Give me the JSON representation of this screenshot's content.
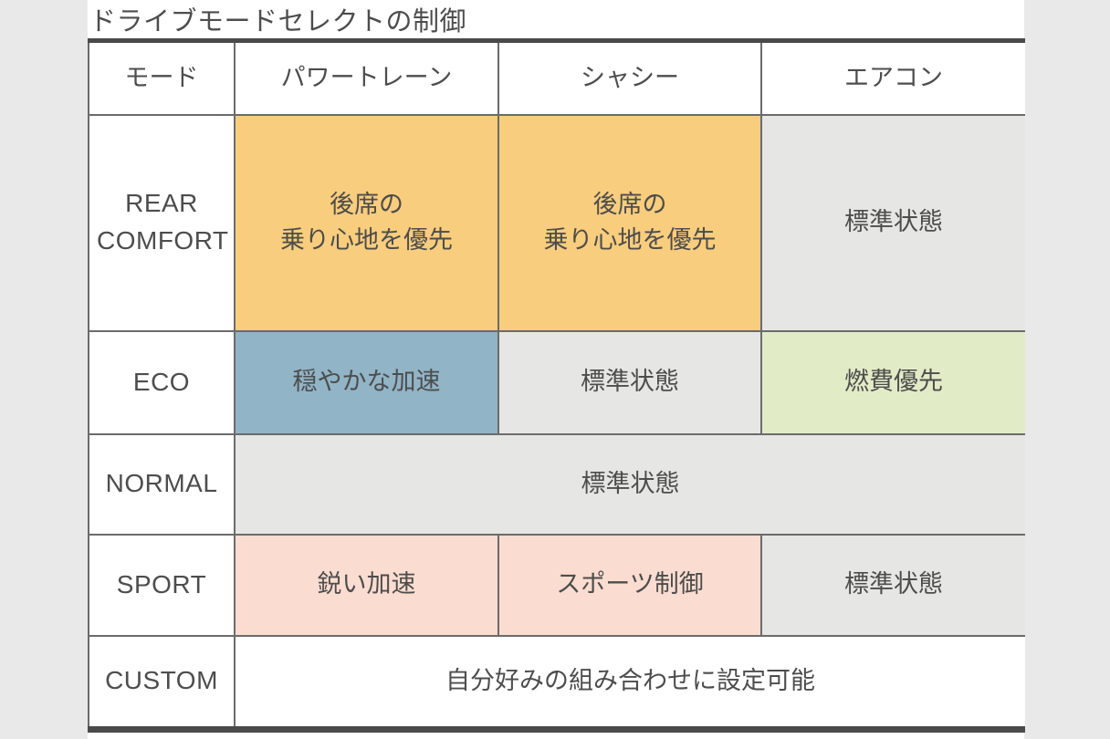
{
  "page": {
    "title": "ドライブモードセレクトの制御",
    "background": "#e9e9e9",
    "panel_background": "#ffffff"
  },
  "colors": {
    "standard_gray": "#e6e6e4",
    "comfort_orange": "#f8cd7d",
    "eco_blue": "#91b4c7",
    "fuel_green": "#e1ecc7",
    "sport_pink": "#fadcd0",
    "plain_white": "#ffffff",
    "text": "#4d4d4d",
    "border_thick": "#4a4a4a",
    "border_thin": "#6b6b6b"
  },
  "table": {
    "headers": [
      "モード",
      "パワートレーン",
      "シャシー",
      "エアコン"
    ],
    "rows": [
      {
        "mode": "REAR COMFORT",
        "cells": [
          {
            "text": "後席の\n乗り心地を優先",
            "bg": "#f8cd7d"
          },
          {
            "text": "後席の\n乗り心地を優先",
            "bg": "#f8cd7d"
          },
          {
            "text": "標準状態",
            "bg": "#e6e6e4"
          }
        ]
      },
      {
        "mode": "ECO",
        "cells": [
          {
            "text": "穏やかな加速",
            "bg": "#91b4c7"
          },
          {
            "text": "標準状態",
            "bg": "#e6e6e4"
          },
          {
            "text": "燃費優先",
            "bg": "#e1ecc7"
          }
        ]
      },
      {
        "mode": "NORMAL",
        "cells": [
          {
            "text": "標準状態",
            "bg": "#e6e6e4"
          }
        ]
      },
      {
        "mode": "SPORT",
        "cells": [
          {
            "text": "鋭い加速",
            "bg": "#fadcd0"
          },
          {
            "text": "スポーツ制御",
            "bg": "#fadcd0"
          },
          {
            "text": "標準状態",
            "bg": "#e6e6e4"
          }
        ]
      },
      {
        "mode": "CUSTOM",
        "cells": [
          {
            "text": "自分好みの組み合わせに設定可能",
            "bg": "#ffffff"
          }
        ]
      }
    ]
  }
}
